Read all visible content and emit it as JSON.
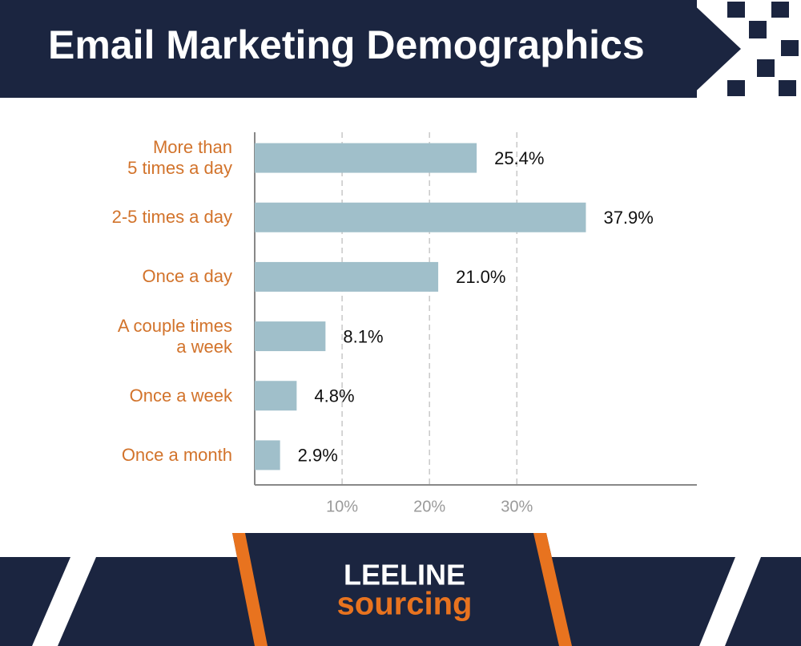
{
  "chart_data": {
    "type": "bar",
    "orientation": "horizontal",
    "title": "Email Marketing Demographics",
    "categories": [
      "More than\n5 times a day",
      "2-5 times a day",
      "Once a day",
      "A couple times\na week",
      "Once a week",
      "Once a month"
    ],
    "values": [
      25.4,
      37.9,
      21,
      8.1,
      4.8,
      2.9
    ],
    "value_labels": [
      "25.4%",
      "37.9%",
      "21.0%",
      "8.1%",
      "4.8%",
      "2.9%"
    ],
    "color": "#a0bfca",
    "xlim": [
      0,
      50.6
    ],
    "xticks": [
      {
        "value": 10,
        "label": "10%"
      },
      {
        "value": 20,
        "label": "20%"
      },
      {
        "value": 30,
        "label": "30%"
      }
    ],
    "grid": true
  },
  "footer": {
    "brand_line1": "LEELINE",
    "brand_line2": "sourcing"
  }
}
